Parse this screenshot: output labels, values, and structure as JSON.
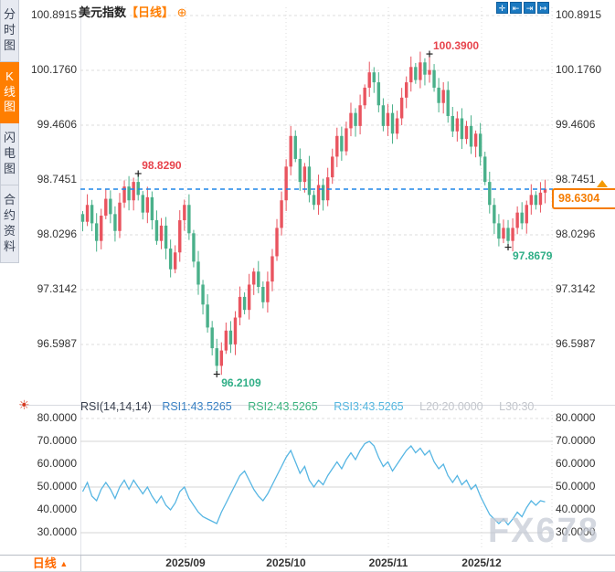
{
  "sidebar": {
    "items": [
      {
        "label": "分时图",
        "active": false
      },
      {
        "label": "K线图",
        "active": true
      },
      {
        "label": "闪电图",
        "active": false
      },
      {
        "label": "合约资料",
        "active": false
      }
    ]
  },
  "header": {
    "symbol": "美元指数",
    "period_tag": "【日线】",
    "add_icon": "⊕"
  },
  "toolbar": {
    "icons": [
      {
        "name": "crosshair-icon",
        "glyph": "✛"
      },
      {
        "name": "zoom-out-icon",
        "glyph": "⇤"
      },
      {
        "name": "zoom-in-icon",
        "glyph": "⇥"
      },
      {
        "name": "goto-latest-icon",
        "glyph": "↦"
      }
    ]
  },
  "price_axis": {
    "labels": [
      "100.8915",
      "100.1760",
      "99.4606",
      "98.7451",
      "98.0296",
      "97.3142",
      "96.5987"
    ]
  },
  "rsi_axis": {
    "labels": [
      "80.0000",
      "70.0000",
      "60.0000",
      "50.0000",
      "40.0000",
      "30.0000"
    ]
  },
  "x_axis": {
    "labels": [
      "2025/09",
      "2025/10",
      "2025/11",
      "2025/12"
    ]
  },
  "bottom": {
    "period_label": "日线",
    "period_arrow": "▲"
  },
  "rsi_header": {
    "name": "RSI(14,14,14)",
    "rsi1": "RSI1:43.5265",
    "rsi2": "RSI2:43.5265",
    "rsi3": "RSI3:43.5265",
    "l20": "L20:20.0000",
    "l30": "L30:30."
  },
  "annotations": {
    "current_price": "98.6304",
    "marks": [
      {
        "label": "98.8290",
        "index": 12,
        "price": 98.829,
        "type": "high"
      },
      {
        "label": "100.3900",
        "index": 75,
        "price": 100.39,
        "type": "high"
      },
      {
        "label": "96.2109",
        "index": 29,
        "price": 96.2109,
        "type": "low"
      },
      {
        "label": "97.8679",
        "index": 92,
        "price": 97.8679,
        "type": "low"
      }
    ]
  },
  "watermark": "FX678",
  "colors": {
    "up_candle": "#e9545f",
    "down_candle": "#4ab08a",
    "high_text": "#e7434c",
    "low_text": "#2fae86",
    "current_line": "#1e86e8",
    "accent_orange": "#ff7e00",
    "rsi_line": "#57b6e3",
    "grid": "#dcdcdc"
  },
  "chart_data": {
    "type": "candlestick",
    "title": "美元指数 日线",
    "price_grid": [
      100.8915,
      100.176,
      99.4606,
      98.7451,
      98.0296,
      97.3142,
      96.5987
    ],
    "ylim": [
      96.5987,
      100.8915
    ],
    "current_price": 98.6304,
    "marked_points": {
      "swing_high": 98.829,
      "top": 100.39,
      "bottom": 96.2109,
      "swing_low": 97.8679
    },
    "x_ticks": [
      "2025/09",
      "2025/10",
      "2025/11",
      "2025/12"
    ],
    "first_open": 98.3,
    "closes": [
      98.2,
      98.42,
      98.18,
      97.95,
      98.28,
      98.5,
      98.3,
      98.08,
      98.45,
      98.66,
      98.48,
      98.72,
      98.55,
      98.32,
      98.52,
      98.22,
      97.95,
      98.15,
      97.85,
      97.58,
      97.8,
      98.22,
      98.42,
      98.05,
      97.68,
      97.38,
      97.12,
      96.82,
      96.55,
      96.32,
      96.52,
      96.78,
      96.6,
      96.95,
      97.22,
      97.05,
      97.38,
      97.55,
      97.35,
      97.15,
      97.42,
      97.75,
      98.12,
      98.48,
      98.92,
      99.32,
      99.02,
      98.72,
      98.92,
      98.55,
      98.42,
      98.68,
      98.48,
      98.78,
      99.05,
      99.32,
      99.12,
      99.42,
      99.62,
      99.45,
      99.72,
      99.95,
      100.15,
      100.02,
      99.72,
      99.45,
      99.62,
      99.35,
      99.55,
      99.82,
      100.02,
      100.22,
      100.05,
      100.28,
      100.12,
      100.18,
      99.95,
      99.75,
      99.92,
      99.58,
      99.38,
      99.55,
      99.28,
      99.45,
      99.18,
      99.35,
      99.05,
      98.72,
      98.42,
      98.18,
      97.98,
      98.12,
      97.95,
      98.12,
      98.32,
      98.18,
      98.42,
      98.55,
      98.42,
      98.58,
      98.6304
    ],
    "special_wicks": {
      "12": {
        "h": 98.829
      },
      "29": {
        "l": 96.2109
      },
      "75": {
        "h": 100.39
      },
      "92": {
        "l": 97.8679
      },
      "100": {
        "h": 98.75
      }
    },
    "rsi": {
      "type": "line",
      "params": "14,14,14",
      "levels": [
        80,
        70,
        50,
        30
      ],
      "last_value": 43.5265,
      "values": [
        48,
        52,
        46,
        44,
        49,
        52,
        49,
        45,
        50,
        53,
        49,
        53,
        50,
        47,
        50,
        46,
        43,
        46,
        42,
        40,
        43,
        48,
        50,
        45,
        42,
        39,
        37,
        36,
        35,
        34,
        39,
        43,
        47,
        51,
        55,
        57,
        53,
        49,
        46,
        44,
        47,
        51,
        55,
        59,
        63,
        66,
        61,
        56,
        59,
        53,
        50,
        53,
        51,
        55,
        58,
        61,
        58,
        62,
        65,
        62,
        66,
        69,
        70,
        68,
        63,
        59,
        61,
        57,
        60,
        63,
        66,
        68,
        65,
        67,
        64,
        66,
        61,
        58,
        60,
        55,
        52,
        55,
        51,
        53,
        49,
        51,
        46,
        42,
        38,
        36,
        34,
        36,
        33.5,
        36,
        39,
        37,
        41,
        44,
        42,
        44,
        43.53
      ]
    }
  }
}
